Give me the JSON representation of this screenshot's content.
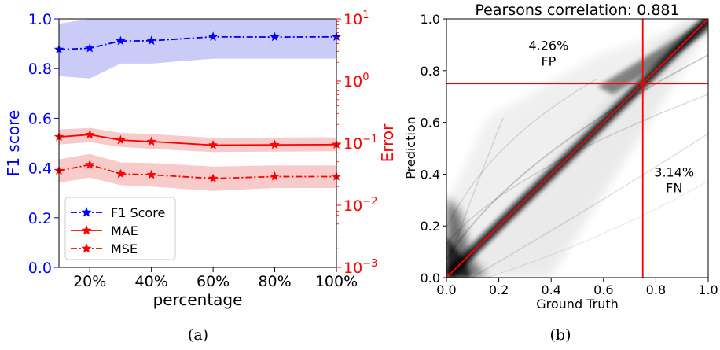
{
  "panels": {
    "a": {
      "caption": "(a)"
    },
    "b": {
      "caption": "(b)"
    }
  },
  "colors": {
    "blue": "#0000ff",
    "red": "#ff0000",
    "blue_band": "#c8c8f8",
    "red_band": "#f8c8c8"
  },
  "chart_data": [
    {
      "type": "line",
      "xlabel": "percentage",
      "ylabel": "F1 score",
      "ylabel_right": "Error",
      "x": [
        10,
        20,
        30,
        40,
        60,
        80,
        100
      ],
      "xticks": [
        20,
        40,
        60,
        80,
        100
      ],
      "xtick_labels": [
        "20%",
        "40%",
        "60%",
        "80%",
        "100%"
      ],
      "xlim": [
        10,
        100
      ],
      "ylim": [
        0.0,
        1.0
      ],
      "yticks": [
        0.0,
        0.2,
        0.4,
        0.6,
        0.8,
        1.0
      ],
      "ytick_labels": [
        "0.0",
        "0.2",
        "0.4",
        "0.6",
        "0.8",
        "1.0"
      ],
      "y2_scale": "log",
      "y2lim": [
        0.001,
        10
      ],
      "y2ticks": [
        0.001,
        0.01,
        0.1,
        1,
        10
      ],
      "y2tick_labels": [
        {
          "base": "10",
          "exp": "−3"
        },
        {
          "base": "10",
          "exp": "−2"
        },
        {
          "base": "10",
          "exp": "−1"
        },
        {
          "base": "10",
          "exp": "0"
        },
        {
          "base": "10",
          "exp": "1"
        }
      ],
      "legend_position": "lower-left",
      "series": [
        {
          "name": "F1 Score",
          "axis": "left",
          "style": "dashdot",
          "color": "#0000ff",
          "values": [
            0.877,
            0.882,
            0.911,
            0.912,
            0.928,
            0.927,
            0.928
          ],
          "band_low": [
            0.77,
            0.76,
            0.82,
            0.82,
            0.84,
            0.84,
            0.84
          ],
          "band_high": [
            0.98,
            1.0,
            1.0,
            1.0,
            1.0,
            1.0,
            1.0
          ]
        },
        {
          "name": "MAE",
          "axis": "right",
          "style": "solid",
          "color": "#ff0000",
          "values": [
            0.126,
            0.137,
            0.112,
            0.106,
            0.093,
            0.094,
            0.095
          ],
          "band_low": [
            0.095,
            0.104,
            0.087,
            0.081,
            0.072,
            0.073,
            0.074
          ],
          "band_high": [
            0.166,
            0.176,
            0.146,
            0.14,
            0.122,
            0.123,
            0.124
          ]
        },
        {
          "name": "MSE",
          "axis": "right",
          "style": "dashdot",
          "color": "#ff0000",
          "values": [
            0.036,
            0.045,
            0.032,
            0.031,
            0.027,
            0.029,
            0.029
          ],
          "band_low": [
            0.023,
            0.028,
            0.021,
            0.02,
            0.017,
            0.019,
            0.019
          ],
          "band_high": [
            0.055,
            0.067,
            0.049,
            0.048,
            0.042,
            0.044,
            0.044
          ]
        }
      ]
    },
    {
      "type": "heatmap",
      "title": "Pearsons correlation: 0.881",
      "xlabel": "Ground Truth",
      "ylabel": "Prediction",
      "xlim": [
        0.0,
        1.0
      ],
      "ylim": [
        0.0,
        1.0
      ],
      "ticks": [
        0.0,
        0.2,
        0.4,
        0.6,
        0.8,
        1.0
      ],
      "tick_labels": [
        "0.0",
        "0.2",
        "0.4",
        "0.6",
        "0.8",
        "1.0"
      ],
      "threshold": 0.75,
      "threshold_lines": {
        "vertical": 0.75,
        "horizontal": 0.75,
        "color": "#ff0000"
      },
      "diagonal_color": "#ff0000",
      "annotations": [
        {
          "pct": "4.26%",
          "label": "FP",
          "x": 0.39,
          "y": 0.85
        },
        {
          "pct": "3.14%",
          "label": "FN",
          "x": 0.87,
          "y": 0.36
        }
      ]
    }
  ]
}
